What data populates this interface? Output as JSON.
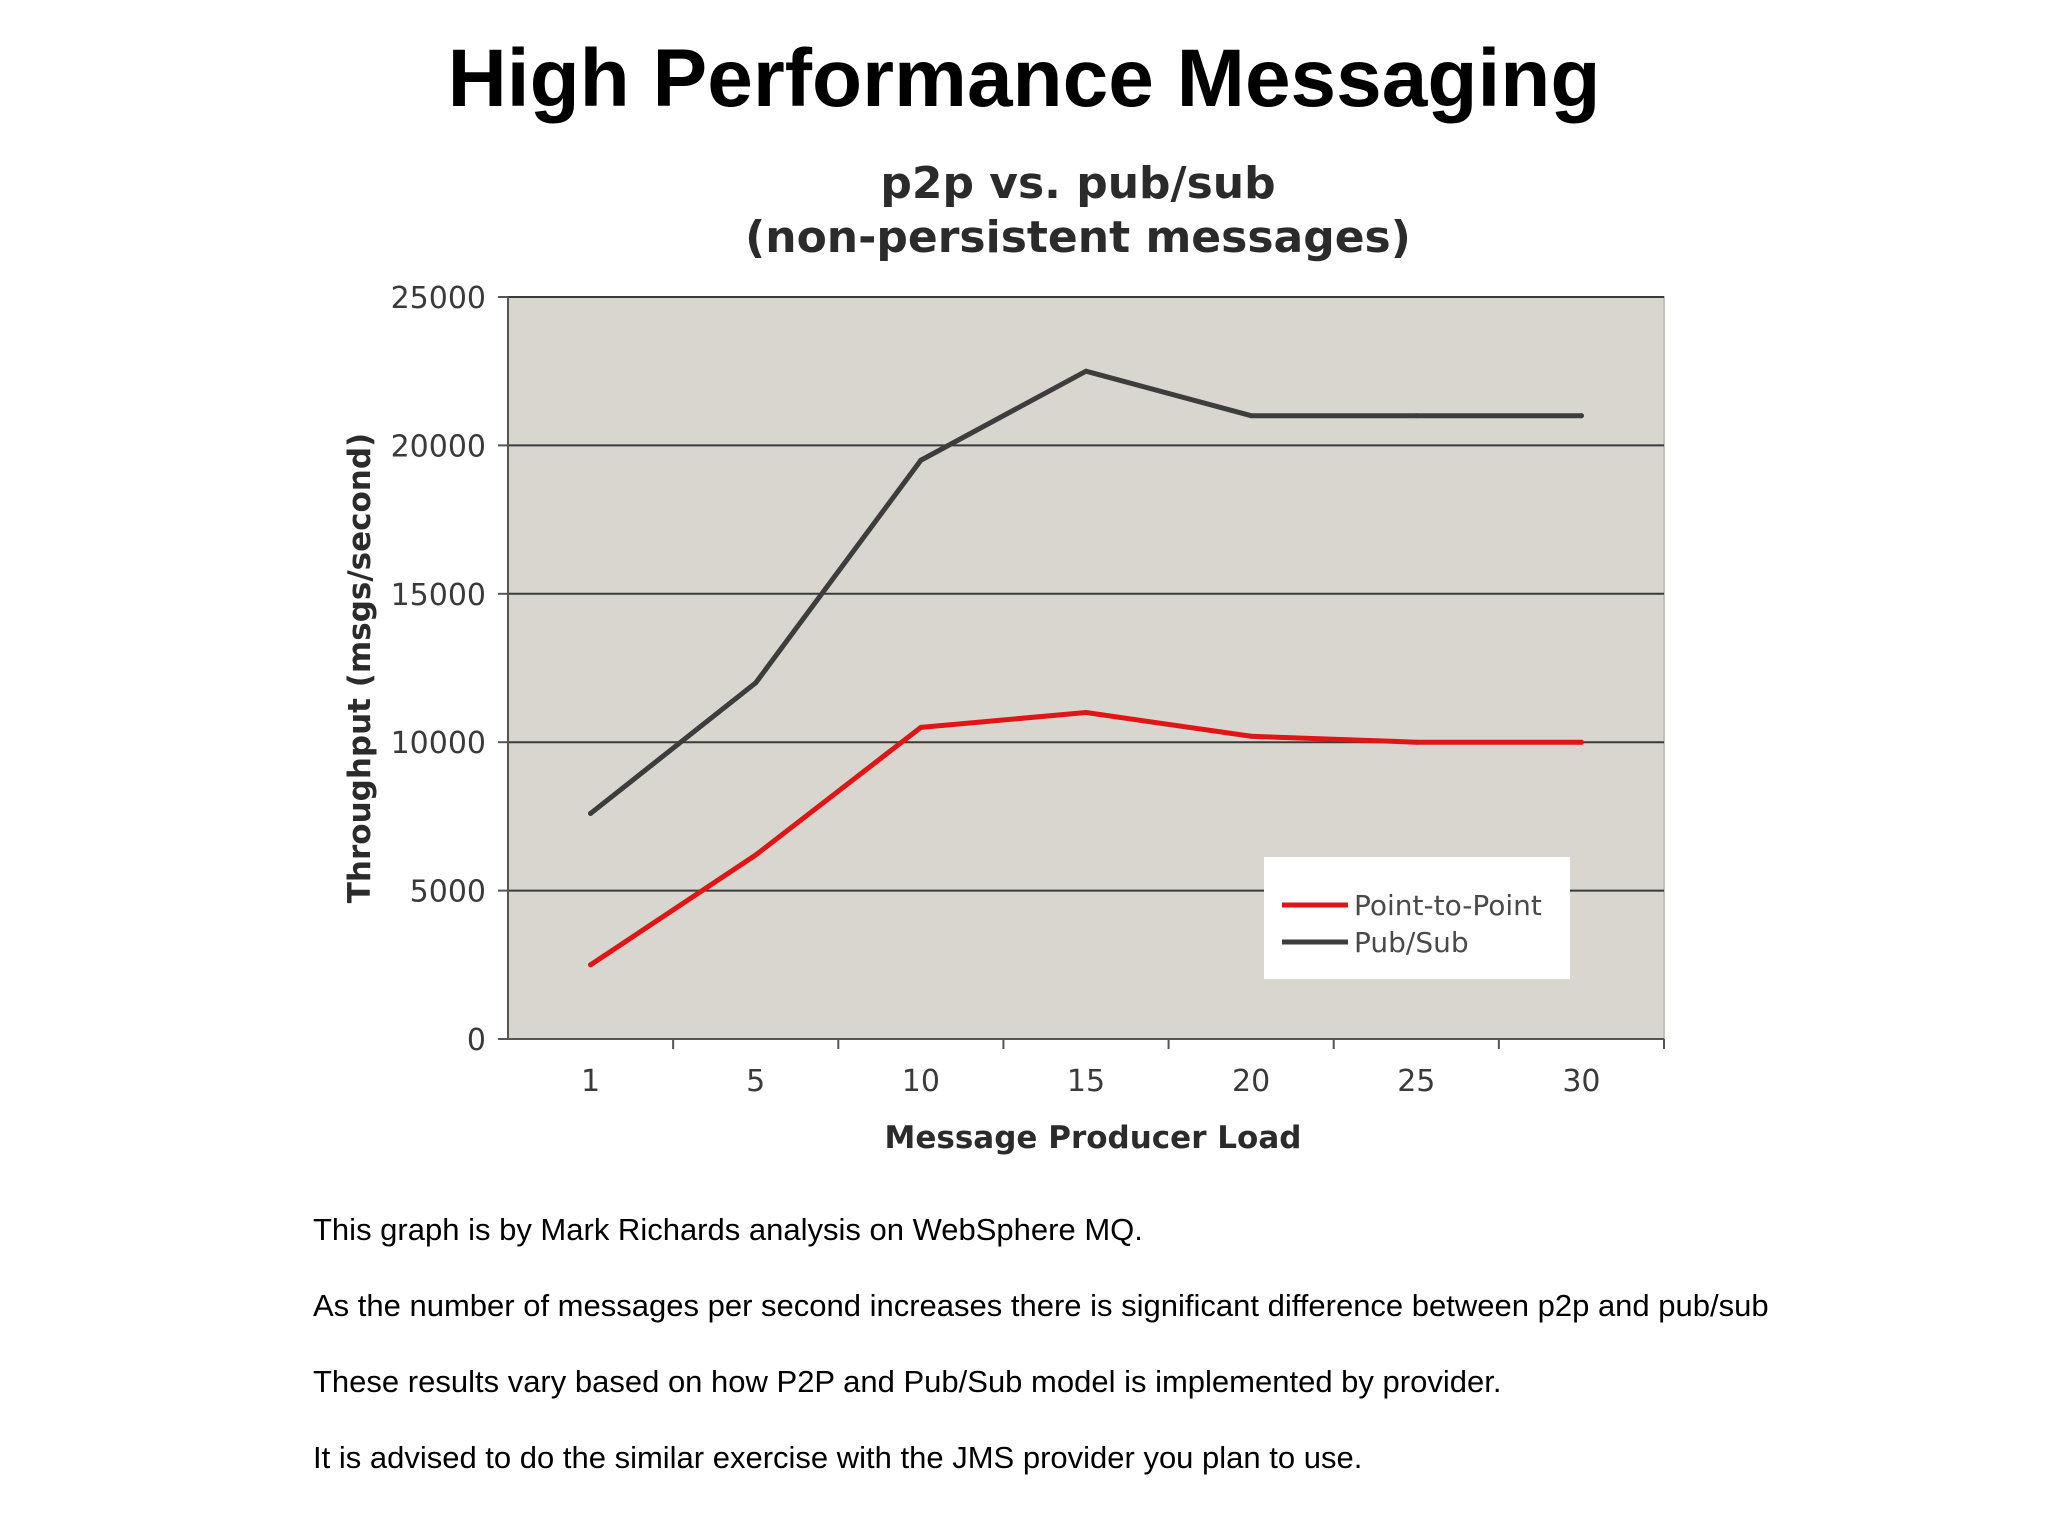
{
  "slide": {
    "title": "High Performance Messaging"
  },
  "chart_data": {
    "type": "line",
    "title_lines": [
      "p2p vs. pub/sub",
      "(non-persistent messages)"
    ],
    "xlabel": "Message Producer Load",
    "ylabel": "Throughput (msgs/second)",
    "categories": [
      "1",
      "5",
      "10",
      "15",
      "20",
      "25",
      "30"
    ],
    "ylim": [
      0,
      25000
    ],
    "yticks": [
      0,
      5000,
      10000,
      15000,
      20000,
      25000
    ],
    "grid": true,
    "legend_position": "bottom-right",
    "plot_background": "#d9d6d0",
    "series": [
      {
        "name": "Point-to-Point",
        "color": "#e01515",
        "values": [
          2500,
          6200,
          10500,
          11000,
          10200,
          10000,
          10000
        ]
      },
      {
        "name": "Pub/Sub",
        "color": "#3d3d3d",
        "values": [
          7600,
          12000,
          19500,
          22500,
          21000,
          21000,
          21000
        ]
      }
    ]
  },
  "notes": [
    "This graph is by Mark Richards analysis on WebSphere MQ.",
    "As the number of messages per second increases there is significant difference between p2p and pub/sub",
    "These results vary based on how P2P and Pub/Sub model is implemented by provider.",
    "It is advised to do the similar exercise with the JMS provider you plan to use."
  ]
}
